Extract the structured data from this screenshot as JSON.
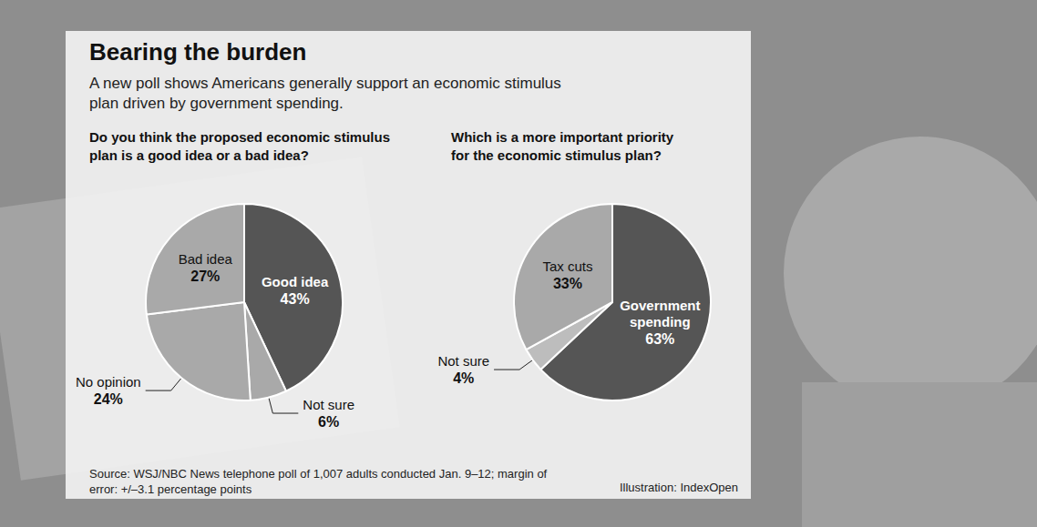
{
  "title": "Bearing the burden",
  "subtitle": "A new poll shows Americans generally support an economic stimulus plan driven by government spending.",
  "source": "Source: WSJ/NBC News telephone poll of 1,007 adults conducted Jan. 9–12; margin of error: +/–3.1 percentage points",
  "credit": "Illustration: IndexOpen",
  "chart_data": [
    {
      "type": "pie",
      "title": "Do you think the proposed economic stimulus plan is a good idea or a bad idea?",
      "categories": [
        "Good idea",
        "Not sure",
        "No opinion",
        "Bad idea"
      ],
      "values": [
        43,
        6,
        24,
        27
      ],
      "value_labels": [
        "43%",
        "6%",
        "24%",
        "27%"
      ],
      "colors": [
        "#555555",
        "#a9a9a9",
        "#a9a9a9",
        "#a9a9a9"
      ],
      "data_labels": true
    },
    {
      "type": "pie",
      "title": "Which is a more important priority for the economic stimulus plan?",
      "categories": [
        "Government spending",
        "Not sure",
        "Tax cuts"
      ],
      "values": [
        63,
        4,
        33
      ],
      "value_labels": [
        "63%",
        "4%",
        "33%"
      ],
      "colors": [
        "#555555",
        "#bdbdbd",
        "#a9a9a9"
      ],
      "data_labels": true
    }
  ]
}
